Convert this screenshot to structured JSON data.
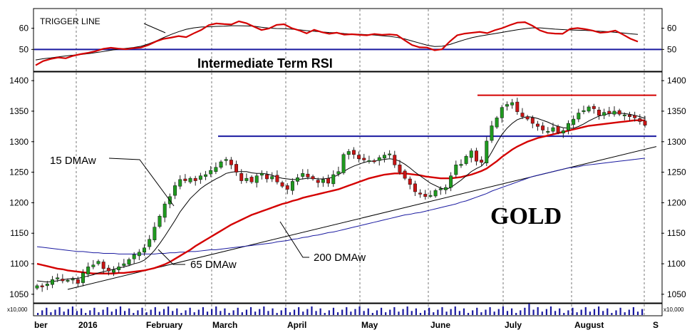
{
  "chart_data": [
    {
      "type": "line",
      "title": "Intermediate Term RSI",
      "ylim": [
        40,
        69
      ],
      "y_ticks": [
        50,
        60
      ],
      "grid": "dashed vertical month dividers",
      "annotations": [
        {
          "text": "TRIGGER LINE"
        }
      ],
      "reference_line": {
        "value": 50,
        "color": "#1a1aa0"
      },
      "series": [
        {
          "name": "RSI",
          "color": "#d40000",
          "values": [
            42.5,
            44.5,
            45.5,
            46.2,
            45.8,
            47.0,
            47.8,
            48.4,
            49.2,
            50.3,
            50.8,
            50.4,
            50.1,
            50.6,
            50.9,
            52.1,
            53.8,
            55.0,
            55.6,
            56.3,
            55.8,
            57.6,
            59.2,
            61.5,
            62.3,
            62.0,
            61.8,
            63.3,
            62.4,
            60.8,
            59.2,
            59.9,
            61.6,
            61.9,
            60.1,
            59.0,
            57.6,
            59.3,
            58.2,
            57.4,
            57.9,
            57.0,
            57.2,
            56.9,
            56.7,
            57.3,
            56.9,
            57.1,
            56.8,
            54.4,
            52.1,
            51.0,
            50.9,
            49.6,
            50.1,
            53.7,
            56.7,
            57.5,
            57.9,
            58.3,
            57.7,
            59.1,
            60.1,
            61.5,
            62.7,
            62.9,
            61.2,
            59.0,
            57.8,
            57.5,
            57.4,
            59.7,
            60.1,
            59.6,
            58.9,
            57.9,
            58.2,
            58.9,
            57.1,
            55.1,
            53.7
          ],
          "trigger": [
            45.0,
            45.6,
            46.0,
            46.5,
            46.9,
            47.3,
            47.6,
            48.0,
            48.5,
            49.0,
            49.6,
            50.1,
            50.5,
            50.9,
            51.5,
            52.6,
            54.0,
            55.6,
            57.1,
            58.4,
            59.5,
            60.2,
            60.6,
            60.7,
            60.9,
            61.0,
            61.2,
            61.2,
            61.1,
            61.0,
            60.5,
            60.1,
            59.9,
            59.8,
            59.6,
            59.3,
            58.9,
            58.6,
            58.3,
            58.0,
            57.9,
            57.5,
            57.3,
            57.2,
            57.0,
            56.8,
            56.5,
            56.2,
            55.7,
            55.0,
            54.0,
            53.0,
            52.0,
            51.4,
            51.5,
            52.3,
            53.5,
            54.6,
            55.6,
            56.3,
            56.9,
            57.5,
            58.1,
            58.7,
            59.3,
            59.8,
            60.2,
            60.2,
            59.9,
            59.6,
            59.4,
            59.2,
            59.1,
            59.0,
            58.8,
            58.6,
            58.4,
            58.1,
            57.8,
            57.4,
            57.1
          ]
        }
      ]
    },
    {
      "type": "candlestick",
      "title": "GOLD",
      "ylim": [
        1037,
        1413
      ],
      "y_ticks": [
        1050,
        1100,
        1150,
        1200,
        1250,
        1300,
        1350,
        1400
      ],
      "x_ticks": [
        "ber",
        "2016",
        "February",
        "March",
        "April",
        "May",
        "June",
        "July",
        "August",
        "S"
      ],
      "grid": "dashed vertical month dividers",
      "annotations": [
        {
          "text": "15 DMAw"
        },
        {
          "text": "65 DMAw"
        },
        {
          "text": "200 DMAw"
        }
      ],
      "resistance": {
        "value": 1376,
        "color": "#d40000"
      },
      "support": {
        "value": 1309,
        "color": "#1a1aa0"
      },
      "close": [
        1064,
        1062,
        1067,
        1074,
        1077,
        1072,
        1073,
        1075,
        1068,
        1085,
        1095,
        1098,
        1104,
        1092,
        1088,
        1090,
        1095,
        1100,
        1107,
        1115,
        1119,
        1126,
        1140,
        1160,
        1178,
        1198,
        1210,
        1228,
        1238,
        1236,
        1240,
        1236,
        1244,
        1246,
        1253,
        1258,
        1267,
        1271,
        1262,
        1250,
        1236,
        1240,
        1234,
        1244,
        1248,
        1239,
        1243,
        1234,
        1227,
        1222,
        1235,
        1241,
        1248,
        1242,
        1239,
        1233,
        1238,
        1232,
        1246,
        1251,
        1279,
        1284,
        1279,
        1272,
        1270,
        1269,
        1267,
        1274,
        1278,
        1280,
        1262,
        1250,
        1240,
        1230,
        1218,
        1214,
        1210,
        1212,
        1220,
        1223,
        1225,
        1244,
        1262,
        1263,
        1276,
        1285,
        1268,
        1266,
        1301,
        1326,
        1339,
        1356,
        1361,
        1364,
        1349,
        1341,
        1337,
        1330,
        1325,
        1319,
        1317,
        1323,
        1315,
        1318,
        1330,
        1337,
        1347,
        1351,
        1357,
        1354,
        1343,
        1348,
        1346,
        1350,
        1345,
        1344,
        1341,
        1339,
        1333,
        1327
      ],
      "dmaw15": [
        1072,
        1071,
        1070,
        1071,
        1072,
        1074,
        1075,
        1076,
        1076,
        1078,
        1080,
        1082,
        1085,
        1087,
        1089,
        1091,
        1093,
        1095,
        1097,
        1100,
        1102,
        1106,
        1113,
        1122,
        1133,
        1145,
        1158,
        1171,
        1185,
        1196,
        1207,
        1215,
        1223,
        1229,
        1234,
        1239,
        1243,
        1248,
        1250,
        1251,
        1251,
        1251,
        1249,
        1248,
        1248,
        1247,
        1245,
        1242,
        1240,
        1239,
        1238,
        1238,
        1239,
        1240,
        1240,
        1239,
        1239,
        1240,
        1242,
        1246,
        1251,
        1256,
        1260,
        1263,
        1266,
        1268,
        1268,
        1270,
        1271,
        1272,
        1271,
        1268,
        1263,
        1257,
        1250,
        1244,
        1238,
        1232,
        1228,
        1224,
        1222,
        1225,
        1231,
        1237,
        1244,
        1251,
        1256,
        1260,
        1269,
        1283,
        1298,
        1312,
        1322,
        1330,
        1336,
        1339,
        1341,
        1340,
        1338,
        1335,
        1332,
        1328,
        1325,
        1323,
        1322,
        1322,
        1325,
        1329,
        1334,
        1338,
        1342,
        1344,
        1346,
        1347,
        1347,
        1346,
        1345,
        1343,
        1341,
        1338
      ],
      "dmaw65": [
        1100,
        1098,
        1096,
        1094,
        1092,
        1091,
        1089,
        1088,
        1087,
        1086,
        1085,
        1084,
        1084,
        1084,
        1084,
        1084,
        1085,
        1085,
        1086,
        1087,
        1088,
        1089,
        1091,
        1093,
        1096,
        1099,
        1103,
        1108,
        1113,
        1118,
        1123,
        1129,
        1134,
        1139,
        1144,
        1149,
        1154,
        1159,
        1164,
        1168,
        1172,
        1176,
        1180,
        1183,
        1186,
        1189,
        1192,
        1195,
        1198,
        1200,
        1203,
        1205,
        1208,
        1210,
        1212,
        1214,
        1216,
        1218,
        1220,
        1222,
        1225,
        1228,
        1231,
        1234,
        1237,
        1240,
        1242,
        1244,
        1246,
        1247,
        1248,
        1248,
        1248,
        1247,
        1246,
        1245,
        1243,
        1242,
        1241,
        1240,
        1240,
        1240,
        1241,
        1242,
        1244,
        1246,
        1249,
        1252,
        1256,
        1262,
        1268,
        1275,
        1281,
        1287,
        1292,
        1296,
        1300,
        1303,
        1306,
        1308,
        1310,
        1312,
        1314,
        1316,
        1318,
        1320,
        1322,
        1324,
        1326,
        1327,
        1328,
        1329,
        1330,
        1331,
        1332,
        1333,
        1334,
        1335,
        1335,
        1335
      ],
      "dmaw200": [
        1128,
        1127,
        1126,
        1125,
        1124,
        1123,
        1122,
        1121,
        1120,
        1120,
        1119,
        1118,
        1118,
        1117,
        1117,
        1117,
        1116,
        1116,
        1116,
        1116,
        1116,
        1116,
        1116,
        1116,
        1117,
        1117,
        1118,
        1118,
        1119,
        1119,
        1120,
        1120,
        1121,
        1122,
        1123,
        1123,
        1124,
        1125,
        1126,
        1127,
        1128,
        1129,
        1130,
        1131,
        1132,
        1133,
        1134,
        1136,
        1137,
        1138,
        1140,
        1141,
        1143,
        1144,
        1146,
        1147,
        1149,
        1151,
        1152,
        1154,
        1156,
        1158,
        1160,
        1162,
        1164,
        1166,
        1168,
        1170,
        1172,
        1174,
        1176,
        1178,
        1180,
        1181,
        1183,
        1184,
        1186,
        1188,
        1190,
        1192,
        1194,
        1196,
        1198,
        1201,
        1203,
        1206,
        1209,
        1212,
        1215,
        1219,
        1222,
        1225,
        1228,
        1231,
        1234,
        1237,
        1240,
        1243,
        1245,
        1247,
        1249,
        1251,
        1253,
        1255,
        1257,
        1258,
        1259,
        1261,
        1262,
        1263,
        1264,
        1265,
        1266,
        1267,
        1268,
        1269,
        1270,
        1271,
        1272,
        1273
      ],
      "trendline": {
        "from": [
          1058,
          1292
        ],
        "color": "#000000"
      },
      "volume_label": "x10,000"
    }
  ]
}
